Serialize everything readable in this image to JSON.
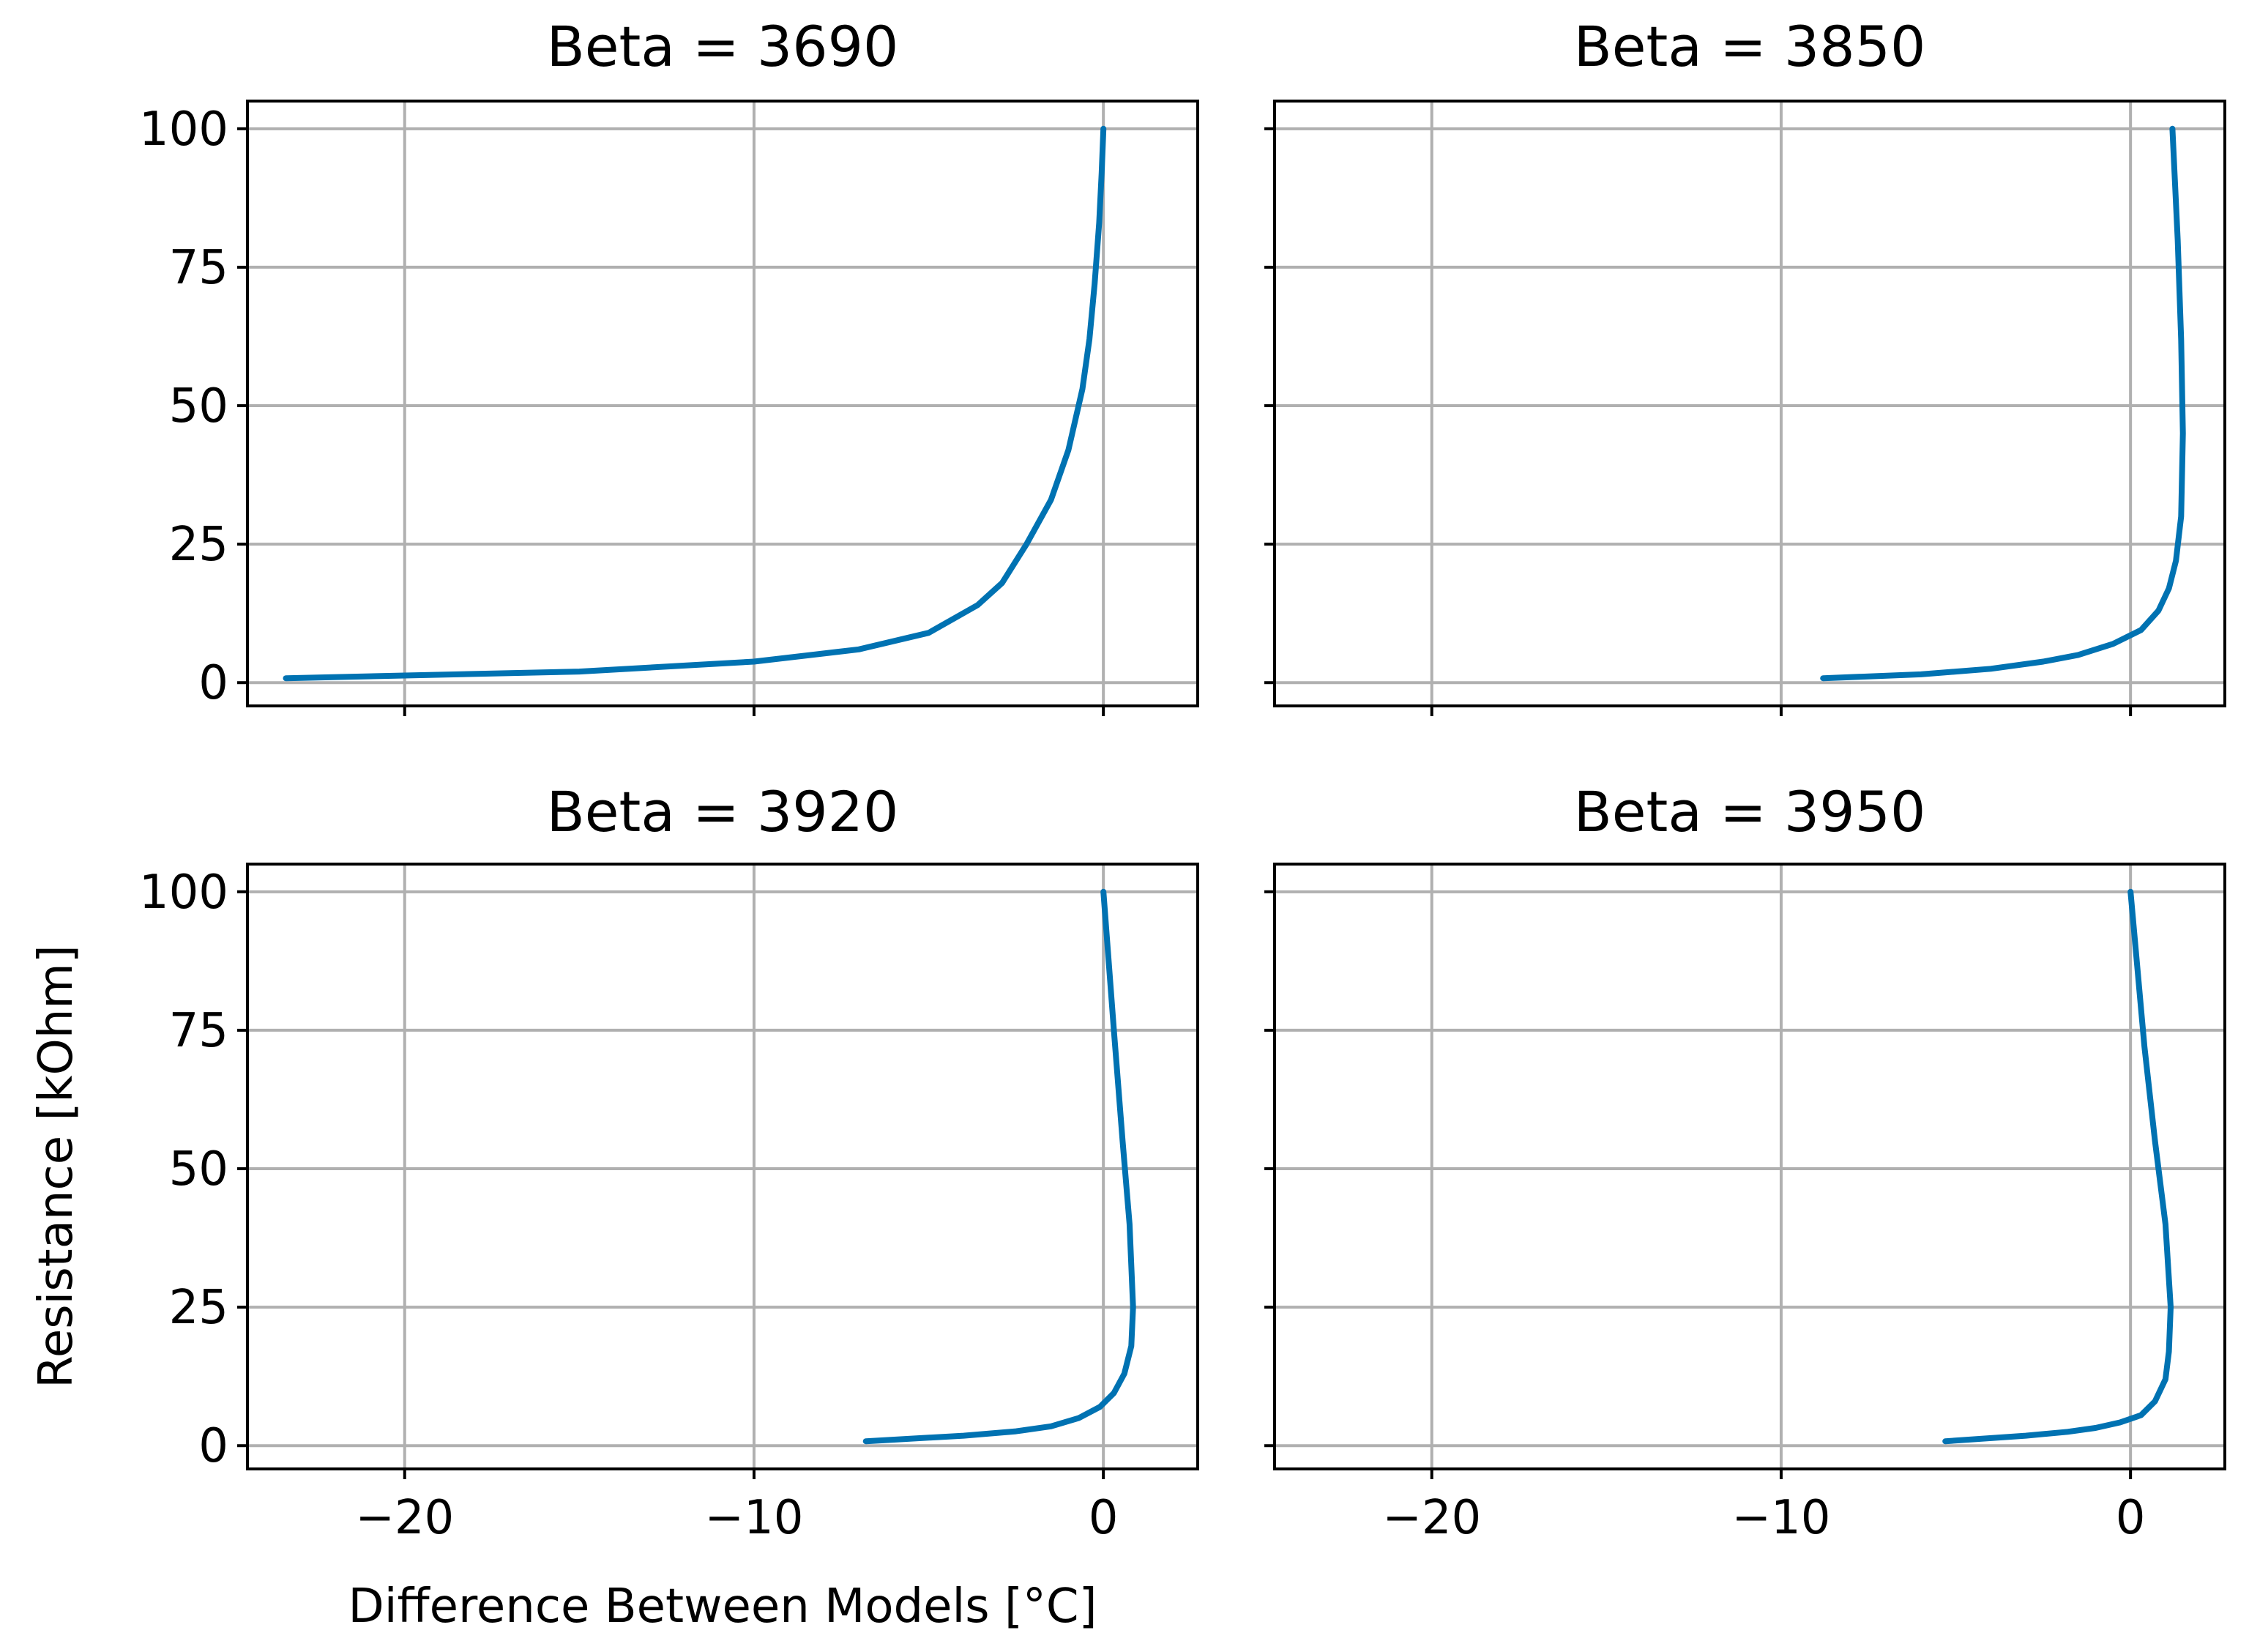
{
  "chart_data": {
    "type": "line",
    "xlabel": "Difference Between Models [°C]",
    "ylabel": "Resistance [kOhm]",
    "xlim": [
      -24.5,
      2.7
    ],
    "ylim": [
      -4.2,
      105
    ],
    "xticks": [
      -20,
      -10,
      0
    ],
    "xtick_labels": [
      "−20",
      "−10",
      "0"
    ],
    "yticks": [
      0,
      25,
      50,
      75,
      100
    ],
    "ytick_labels": [
      "0",
      "25",
      "50",
      "75",
      "100"
    ],
    "grid": true,
    "line_color": "#0072b2",
    "panels": [
      {
        "title": "Beta = 3690",
        "x": [
          -23.4,
          -15,
          -10,
          -7,
          -5,
          -3.6,
          -2.9,
          -2.2,
          -1.5,
          -1.0,
          -0.6,
          -0.4,
          -0.25,
          -0.12,
          -0.05,
          0
        ],
        "y": [
          0.8,
          2,
          3.8,
          6,
          9,
          14,
          18,
          25,
          33,
          42,
          53,
          62,
          72,
          83,
          92,
          100
        ]
      },
      {
        "title": "Beta = 3850",
        "x": [
          -8.8,
          -6,
          -4,
          -2.5,
          -1.5,
          -0.5,
          0.3,
          0.8,
          1.1,
          1.3,
          1.45,
          1.5,
          1.45,
          1.35,
          1.2
        ],
        "y": [
          0.8,
          1.5,
          2.5,
          3.8,
          5,
          7,
          9.5,
          13,
          17,
          22,
          30,
          45,
          62,
          80,
          100
        ]
      },
      {
        "title": "Beta = 3920",
        "x": [
          -6.8,
          -4,
          -2.5,
          -1.5,
          -0.7,
          -0.1,
          0.3,
          0.6,
          0.8,
          0.85,
          0.75,
          0.55,
          0.3,
          0
        ],
        "y": [
          0.8,
          1.8,
          2.6,
          3.5,
          5,
          7,
          9.5,
          13,
          18,
          25,
          40,
          55,
          75,
          100
        ]
      },
      {
        "title": "Beta = 3950",
        "x": [
          -5.3,
          -3,
          -1.8,
          -1,
          -0.3,
          0.3,
          0.7,
          1.0,
          1.1,
          1.15,
          1.0,
          0.7,
          0.4,
          0
        ],
        "y": [
          0.8,
          1.8,
          2.5,
          3.2,
          4.2,
          5.5,
          8,
          12,
          17,
          25,
          40,
          55,
          72,
          100
        ]
      }
    ]
  }
}
